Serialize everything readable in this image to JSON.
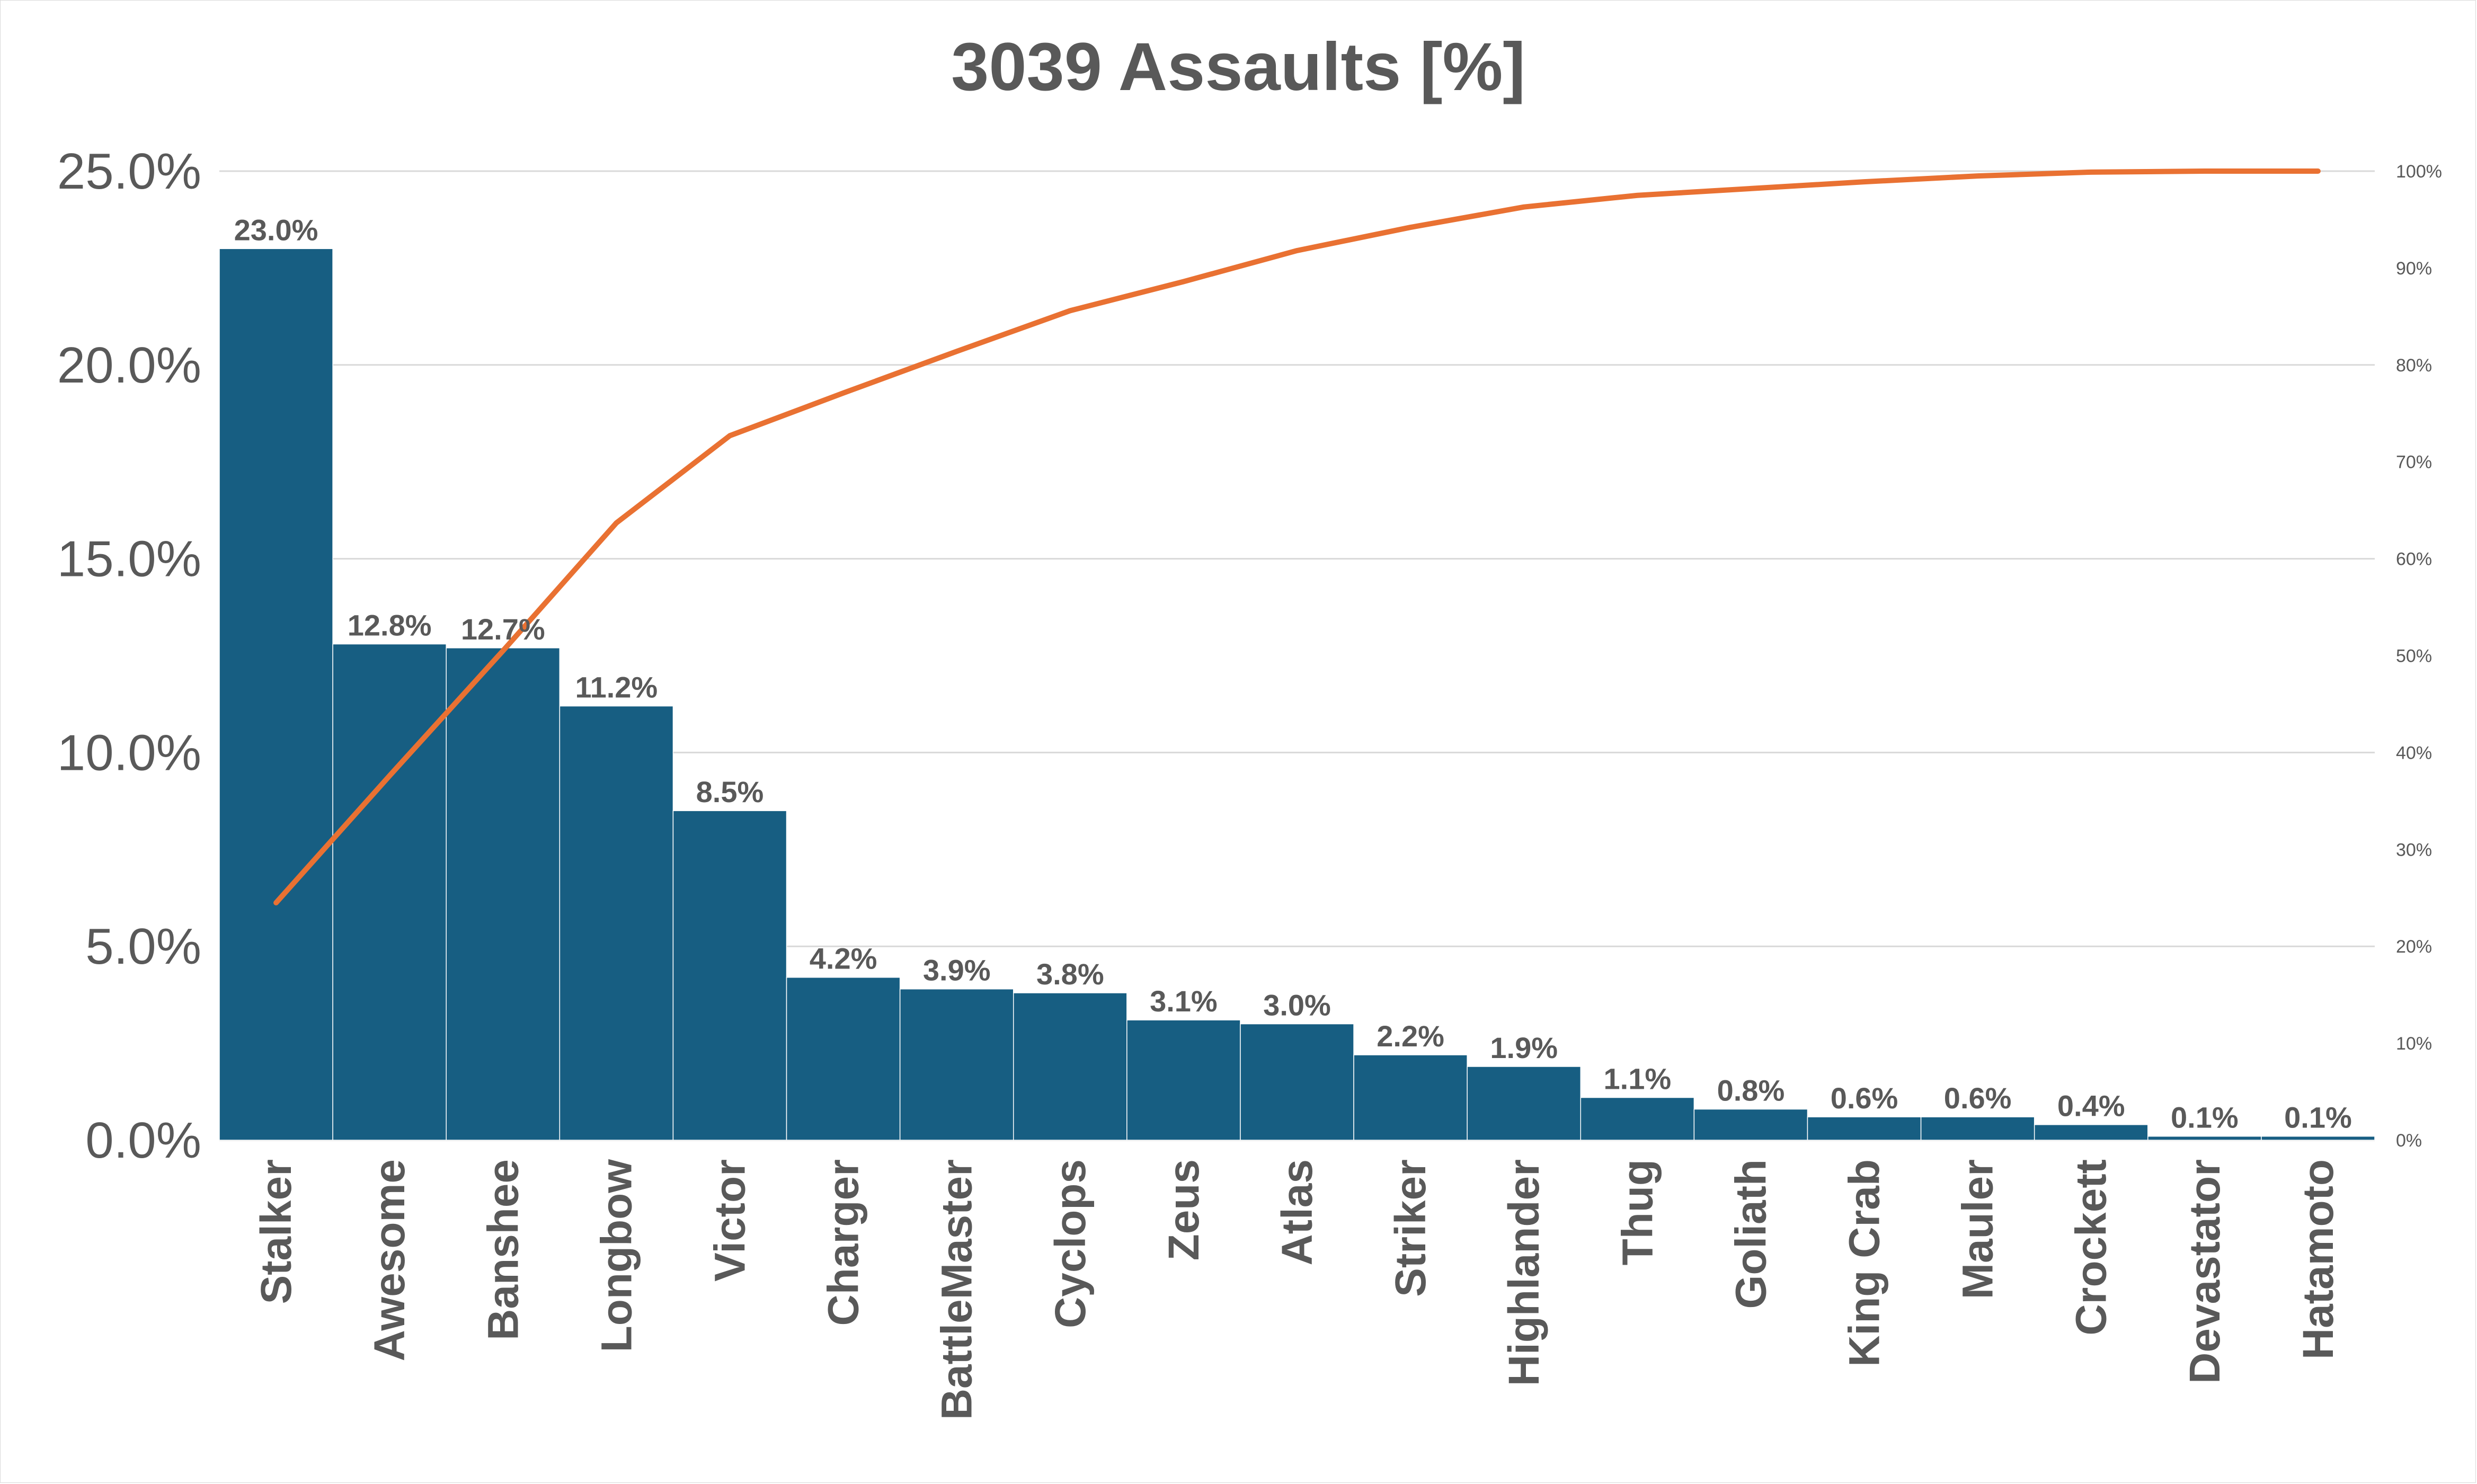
{
  "chart_data": {
    "type": "bar",
    "title": "3039 Assaults [%]",
    "xlabel": "",
    "ylabel": "",
    "categories": [
      "Stalker",
      "Awesome",
      "Banshee",
      "Longbow",
      "Victor",
      "Charger",
      "BattleMaster",
      "Cyclops",
      "Zeus",
      "Atlas",
      "Striker",
      "Highlander",
      "Thug",
      "Goliath",
      "King Crab",
      "Mauler",
      "Crockett",
      "Devastator",
      "Hatamoto"
    ],
    "series": [
      {
        "values": [
          23.0,
          12.8,
          12.7,
          11.2,
          8.5,
          4.2,
          3.9,
          3.8,
          3.1,
          3.0,
          2.2,
          1.9,
          1.1,
          0.8,
          0.6,
          0.6,
          0.4,
          0.1,
          0.1
        ],
        "labels": [
          "23.0%",
          "12.8%",
          "12.7%",
          "11.2%",
          "8.5%",
          "4.2%",
          "3.9%",
          "3.8%",
          "3.1%",
          "3.0%",
          "2.2%",
          "1.9%",
          "1.1%",
          "0.8%",
          "0.6%",
          "0.6%",
          "0.4%",
          "0.1%",
          "0.1%"
        ],
        "color": "#175e82"
      },
      {
        "type": "line",
        "values": [
          24.5,
          37.6,
          50.5,
          63.7,
          72.7,
          77.1,
          81.4,
          85.6,
          88.6,
          91.8,
          94.2,
          96.3,
          97.5,
          98.2,
          98.9,
          99.5,
          99.9,
          100.0,
          100.0
        ],
        "color": "#e97132"
      }
    ],
    "y_left": {
      "ylim": [
        0,
        25
      ],
      "ticks": [
        0,
        5,
        10,
        15,
        20,
        25
      ],
      "tick_labels": [
        "0.0%",
        "5.0%",
        "10.0%",
        "15.0%",
        "20.0%",
        "25.0%"
      ]
    },
    "y_right": {
      "ylim": [
        0,
        100
      ],
      "ticks": [
        0,
        10,
        20,
        30,
        40,
        50,
        60,
        70,
        80,
        90,
        100
      ],
      "tick_labels": [
        "0%",
        "10%",
        "20%",
        "30%",
        "40%",
        "50%",
        "60%",
        "70%",
        "80%",
        "90%",
        "100%"
      ]
    },
    "grid": true,
    "legend": "none",
    "colors": {
      "bar": "#175e82",
      "line": "#e97132",
      "grid": "#d9d9d9",
      "text": "#595959"
    }
  }
}
